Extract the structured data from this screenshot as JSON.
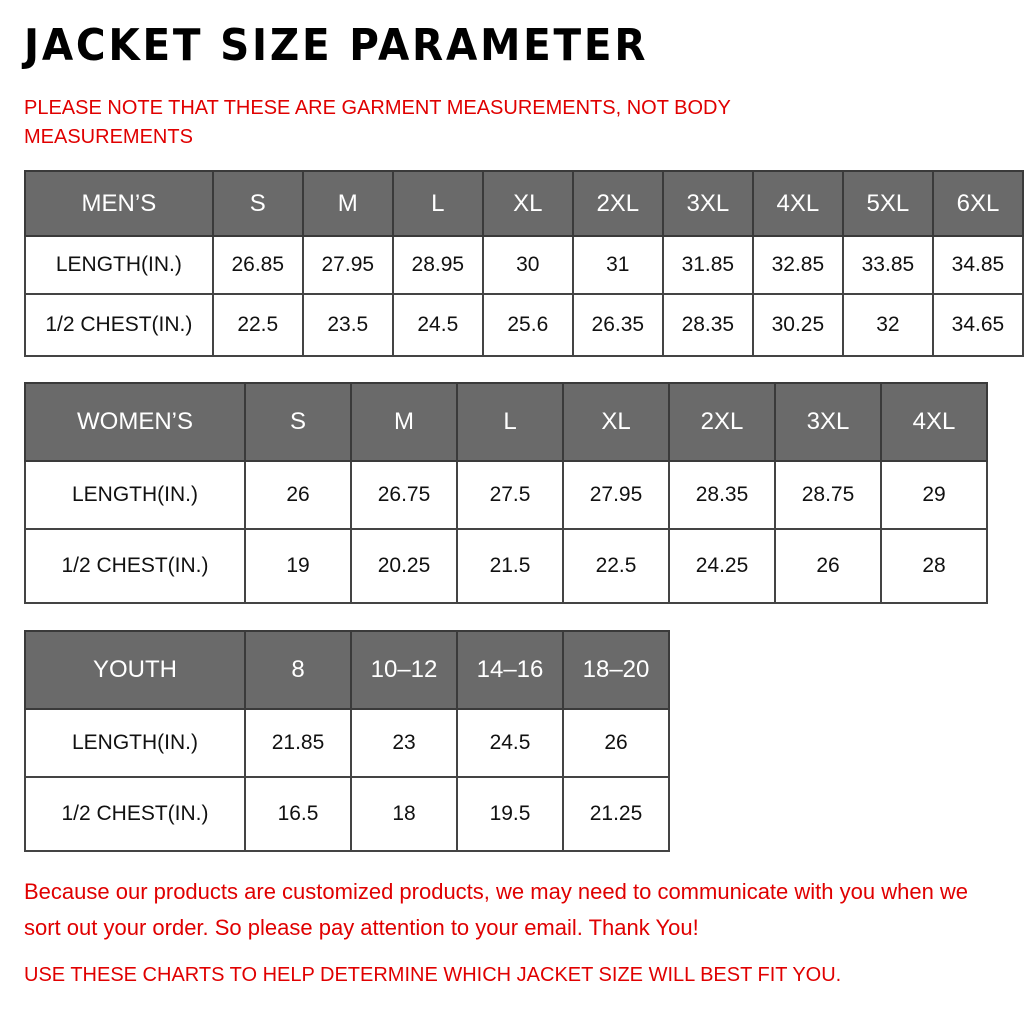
{
  "title": "JACKET SIZE PARAMETER",
  "note": "PLEASE NOTE THAT THESE ARE GARMENT MEASUREMENTS, NOT BODY MEASUREMENTS",
  "tables": [
    {
      "header": [
        "MEN’S",
        "S",
        "M",
        "L",
        "XL",
        "2XL",
        "3XL",
        "4XL",
        "5XL",
        "6XL"
      ],
      "rows": [
        [
          "LENGTH(IN.)",
          "26.85",
          "27.95",
          "28.95",
          "30",
          "31",
          "31.85",
          "32.85",
          "33.85",
          "34.85"
        ],
        [
          "1/2 CHEST(IN.)",
          "22.5",
          "23.5",
          "24.5",
          "25.6",
          "26.35",
          "28.35",
          "30.25",
          "32",
          "34.65"
        ]
      ]
    },
    {
      "header": [
        "WOMEN’S",
        "S",
        "M",
        "L",
        "XL",
        "2XL",
        "3XL",
        "4XL"
      ],
      "rows": [
        [
          "LENGTH(IN.)",
          "26",
          "26.75",
          "27.5",
          "27.95",
          "28.35",
          "28.75",
          "29"
        ],
        [
          "1/2 CHEST(IN.)",
          "19",
          "20.25",
          "21.5",
          "22.5",
          "24.25",
          "26",
          "28"
        ]
      ]
    },
    {
      "header": [
        "YOUTH",
        "8",
        "10–12",
        "14–16",
        "18–20"
      ],
      "rows": [
        [
          "LENGTH(IN.)",
          "21.85",
          "23",
          "24.5",
          "26"
        ],
        [
          "1/2 CHEST(IN.)",
          "16.5",
          "18",
          "19.5",
          "21.25"
        ]
      ]
    }
  ],
  "footer": {
    "message": "Because our products are customized products, we may need to communicate with you when we sort out your order. So please pay attention to your email. Thank You!",
    "instruction": "USE THESE CHARTS TO HELP DETERMINE WHICH JACKET SIZE WILL BEST FIT YOU."
  }
}
